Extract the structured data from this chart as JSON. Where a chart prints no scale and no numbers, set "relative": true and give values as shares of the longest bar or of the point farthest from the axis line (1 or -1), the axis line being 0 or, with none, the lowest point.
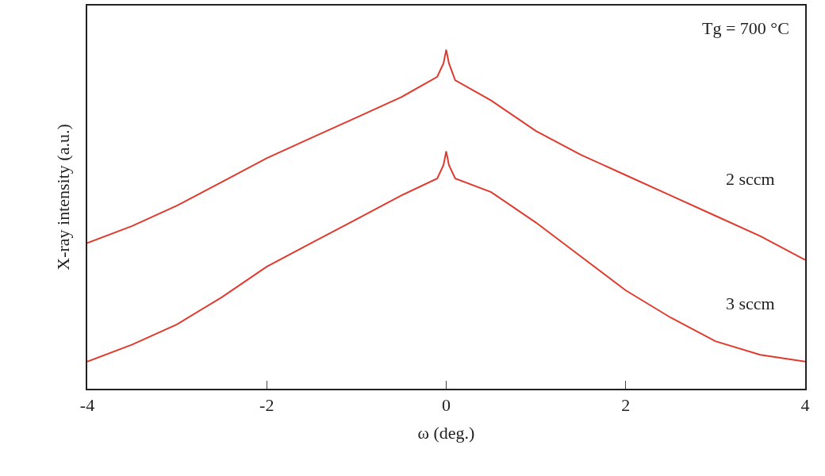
{
  "chart_data": {
    "type": "line",
    "relative": true,
    "xlabel": "ω (deg.)",
    "ylabel": "X-ray intensity (a.u.)",
    "xlim": [
      -4,
      4
    ],
    "xticks": [
      -4,
      -2,
      0,
      2,
      4
    ],
    "legend": false,
    "marker": "none",
    "line_style": "solid",
    "annotations": [
      "Tg = 700 °C"
    ],
    "series": [
      {
        "name": "2 sccm",
        "color": "#e03a2e",
        "x": [
          -4,
          -3.5,
          -3,
          -2.5,
          -2,
          -1.5,
          -1,
          -0.5,
          -0.1,
          -0.03,
          0,
          0.03,
          0.1,
          0.5,
          1,
          1.5,
          2,
          2.5,
          3,
          3.5,
          4
        ],
        "values": [
          0.43,
          0.48,
          0.54,
          0.61,
          0.68,
          0.74,
          0.8,
          0.86,
          0.92,
          0.96,
          1,
          0.96,
          0.91,
          0.85,
          0.76,
          0.69,
          0.63,
          0.57,
          0.51,
          0.45,
          0.38
        ]
      },
      {
        "name": "3 sccm",
        "color": "#e03a2e",
        "x": [
          -4,
          -3.5,
          -3,
          -2.5,
          -2,
          -1.5,
          -1,
          -0.5,
          -0.1,
          -0.03,
          0,
          0.03,
          0.1,
          0.5,
          1,
          1.5,
          2,
          2.5,
          3,
          3.5,
          4
        ],
        "values": [
          0.08,
          0.13,
          0.19,
          0.27,
          0.36,
          0.43,
          0.5,
          0.57,
          0.62,
          0.66,
          0.7,
          0.66,
          0.62,
          0.58,
          0.49,
          0.39,
          0.29,
          0.21,
          0.14,
          0.1,
          0.08
        ]
      }
    ]
  }
}
